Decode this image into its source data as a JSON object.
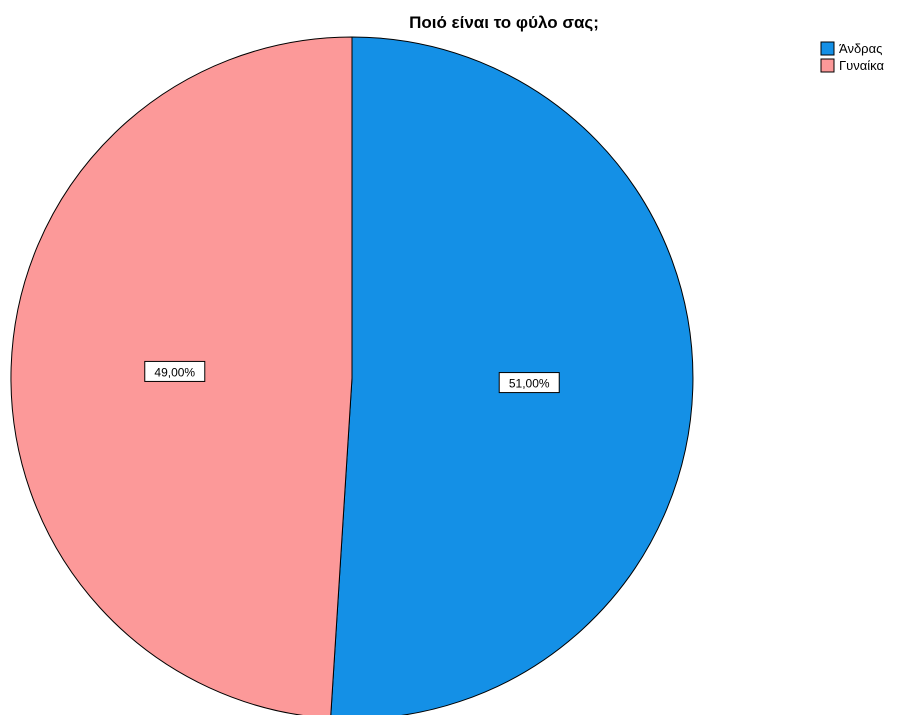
{
  "chart_data": {
    "type": "pie",
    "title": "Ποιό είναι το φύλο σας;",
    "categories": [
      "Άνδρας",
      "Γυναίκα"
    ],
    "values": [
      51.0,
      49.0
    ],
    "data_labels": [
      "51,00%",
      "49,00%"
    ],
    "colors": [
      "#1490e6",
      "#fc9999"
    ],
    "start_angle": "12 o'clock",
    "direction": "clockwise",
    "legend_position": "top-right",
    "outline_color": "#000000"
  }
}
